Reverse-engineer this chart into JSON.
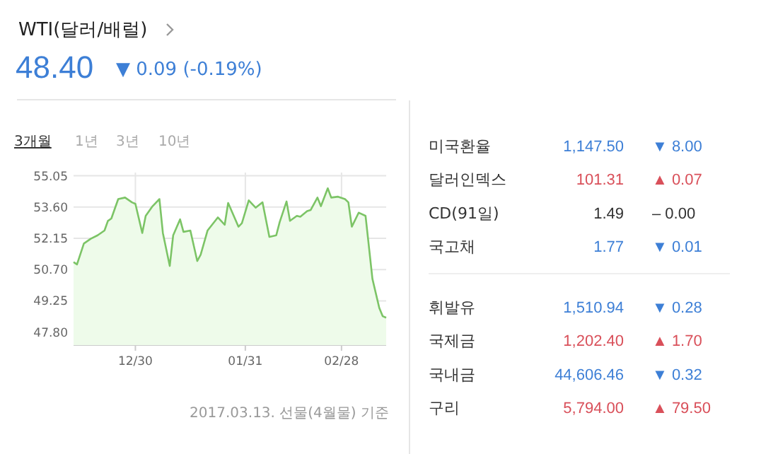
{
  "chart_data": [
    {
      "type": "area",
      "title": "WTI(달러/배럴)",
      "subtitle": "48.40",
      "annotations": [
        "▼ 0.09 (-0.19%)",
        "3개월",
        "1년",
        "3년",
        "10년",
        "2017.03.13. 선물(4월물) 기준"
      ],
      "x": [
        "2016-12-12",
        "2016-12-13",
        "2016-12-15",
        "2016-12-17",
        "2016-12-19",
        "2016-12-21",
        "2016-12-22",
        "2016-12-23",
        "2016-12-25",
        "2016-12-27",
        "2016-12-29",
        "2016-12-30",
        "2017-01-01",
        "2017-01-02",
        "2017-01-04",
        "2017-01-06",
        "2017-01-07",
        "2017-01-09",
        "2017-01-10",
        "2017-01-12",
        "2017-01-13",
        "2017-01-15",
        "2017-01-17",
        "2017-01-18",
        "2017-01-20",
        "2017-01-23",
        "2017-01-25",
        "2017-01-26",
        "2017-01-29",
        "2017-01-30",
        "2017-02-01",
        "2017-02-03",
        "2017-02-05",
        "2017-02-07",
        "2017-02-09",
        "2017-02-10",
        "2017-02-12",
        "2017-02-13",
        "2017-02-15",
        "2017-02-16",
        "2017-02-18",
        "2017-02-19",
        "2017-02-21",
        "2017-02-22",
        "2017-02-24",
        "2017-02-25",
        "2017-02-27",
        "2017-03-01",
        "2017-03-02",
        "2017-03-03",
        "2017-03-05",
        "2017-03-07",
        "2017-03-09",
        "2017-03-11",
        "2017-03-12",
        "2017-03-13"
      ],
      "series": [
        {
          "color": "#7cc466",
          "values": [
            51.05,
            50.94,
            51.91,
            52.13,
            52.29,
            52.51,
            52.96,
            53.07,
            53.97,
            54.04,
            53.82,
            53.75,
            52.4,
            53.19,
            53.64,
            53.97,
            52.4,
            50.87,
            52.29,
            53.03,
            52.45,
            52.51,
            51.1,
            51.39,
            52.51,
            53.12,
            52.78,
            53.79,
            52.69,
            52.85,
            53.91,
            53.57,
            53.82,
            52.22,
            52.29,
            52.9,
            53.86,
            52.96,
            53.19,
            53.15,
            53.41,
            53.46,
            54.04,
            53.64,
            54.47,
            54.04,
            54.08,
            53.97,
            53.82,
            52.69,
            53.34,
            53.19,
            50.27,
            48.92,
            48.54,
            48.47
          ]
        }
      ],
      "xlim": [
        "2016-12-12",
        "2017-03-13"
      ],
      "xticks": [
        {
          "value": "2016-12-30",
          "label": "12/30"
        },
        {
          "value": "2017-01-31",
          "label": "01/31"
        },
        {
          "value": "2017-02-28",
          "label": "02/28"
        }
      ],
      "ylim": [
        47.2,
        55.2
      ],
      "yticks": [
        55.05,
        {
          "value": 53.6,
          "label": "53.60"
        },
        52.15,
        {
          "value": 50.7,
          "label": "50.70"
        },
        49.25,
        {
          "value": 47.8,
          "label": "47.80"
        }
      ],
      "grid": true
    },
    {
      "type": "other",
      "categories": [
        "미국환율",
        "달러인덱스",
        "CD(91일)",
        "국고채"
      ],
      "series": [
        {
          "values": [
            1147.5,
            101.31,
            1.49,
            1.77
          ],
          "value_labels": [
            "1,147.50",
            "101.31",
            "1.49",
            "1.77"
          ],
          "colors": [
            "#3d7fd6",
            "#d9505a",
            "#333333",
            "#3d7fd6"
          ]
        },
        {
          "values": [
            8,
            0.07,
            0,
            0.01
          ],
          "value_labels": [
            "▼ 8.00",
            "▲ 0.07",
            "– 0.00",
            "▼ 0.01"
          ],
          "colors": [
            "#3d7fd6",
            "#d9505a",
            "#333333",
            "#3d7fd6"
          ]
        }
      ]
    },
    {
      "type": "other",
      "categories": [
        "휘발유",
        "국제금",
        "국내금",
        "구리"
      ],
      "series": [
        {
          "values": [
            1510.94,
            1202.4,
            44606.46,
            5794
          ],
          "value_labels": [
            "1,510.94",
            "1,202.40",
            "44,606.46",
            "5,794.00"
          ],
          "colors": [
            "#3d7fd6",
            "#d9505a",
            "#3d7fd6",
            "#d9505a"
          ]
        },
        {
          "values": [
            0.28,
            1.7,
            0.32,
            79.5
          ],
          "value_labels": [
            "▼ 0.28",
            "▲ 1.70",
            "▼ 0.32",
            "▲ 79.50"
          ],
          "colors": [
            "#3d7fd6",
            "#d9505a",
            "#3d7fd6",
            "#d9505a"
          ]
        }
      ]
    }
  ]
}
